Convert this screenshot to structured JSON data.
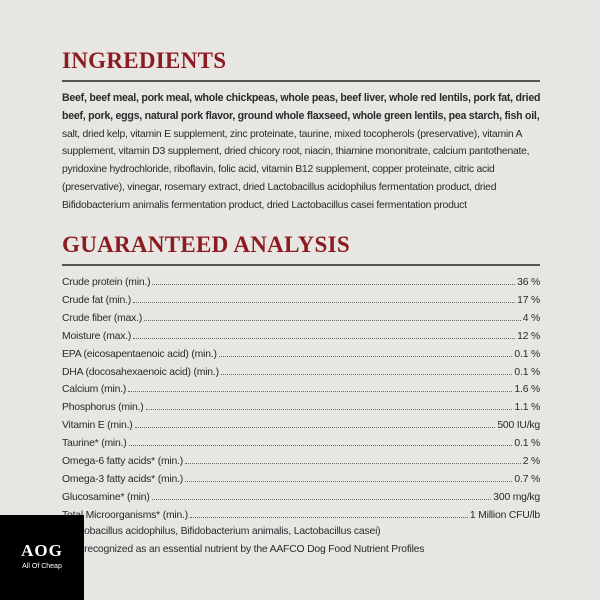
{
  "ingredients": {
    "title": "INGREDIENTS",
    "bold_text": "Beef, beef meal, pork meal, whole chickpeas, whole peas, beef liver, whole red lentils, pork fat, dried beef, pork, eggs, natural pork flavor, ground whole flaxseed, whole green lentils, pea starch, fish oil,",
    "text": "salt, dried kelp, vitamin E supplement, zinc proteinate, taurine, mixed tocopherols (preservative), vitamin A supplement, vitamin D3 supplement, dried chicory root, niacin, thiamine mononitrate, calcium pantothenate, pyridoxine hydrochloride, riboflavin, folic acid, vitamin B12 supplement, copper proteinate, citric acid (preservative), vinegar, rosemary extract, dried Lactobacillus acidophilus fermentation product, dried Bifidobacterium animalis fermentation product, dried Lactobacillus casei fermentation product"
  },
  "analysis": {
    "title": "GUARANTEED ANALYSIS",
    "rows": [
      {
        "label": "Crude protein (min.)",
        "value": "36 %"
      },
      {
        "label": "Crude fat (min.)",
        "value": "17 %"
      },
      {
        "label": "Crude fiber (max.)",
        "value": "4 %"
      },
      {
        "label": "Moisture (max.)",
        "value": "12 %"
      },
      {
        "label": "EPA (eicosapentaenoic acid) (min.)",
        "value": "0.1 %"
      },
      {
        "label": "DHA (docosahexaenoic acid) (min.)",
        "value": "0.1 %"
      },
      {
        "label": "Calcium (min.)",
        "value": "1.6 %"
      },
      {
        "label": "Phosphorus (min.)",
        "value": "1.1 %"
      },
      {
        "label": "Vitamin E (min.)",
        "value": "500 IU/kg"
      },
      {
        "label": "Taurine* (min.)",
        "value": "0.1 %"
      },
      {
        "label": "Omega-6 fatty acids* (min.)",
        "value": "2 %"
      },
      {
        "label": "Omega-3 fatty acids* (min.)",
        "value": "0.7 %"
      },
      {
        "label": "Glucosamine* (min)",
        "value": "300 mg/kg"
      },
      {
        "label": "Total Microorganisms* (min.)",
        "value": "1 Million CFU/lb"
      }
    ],
    "footnotes": [
      "(Lactobacillus acidophilus, Bifidobacterium animalis, Lactobacillus casei)",
      "*Not recognized as an essential nutrient by the AAFCO Dog Food Nutrient Profiles"
    ]
  },
  "logo": {
    "mark": "AOG",
    "name": "All Of Cheap"
  }
}
